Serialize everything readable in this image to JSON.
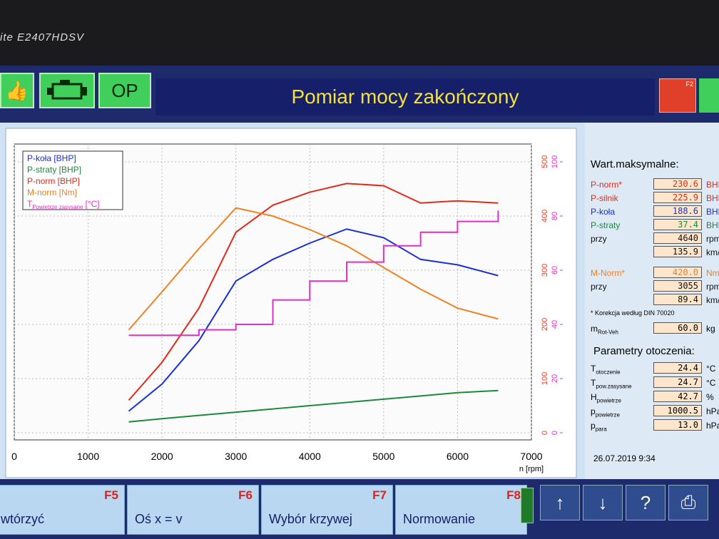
{
  "monitor": {
    "model": "ite E2407HDSV"
  },
  "toolbar": {
    "op_button": "OP",
    "title": "Pomiar mocy zakończony",
    "f2_key": "F2"
  },
  "chart_data": {
    "type": "line",
    "x_label": "n [rpm]",
    "x": [
      1550,
      2000,
      2500,
      3000,
      3500,
      4000,
      4500,
      5000,
      5500,
      6000,
      6550
    ],
    "xlim": [
      0,
      7000
    ],
    "xticks": [
      0,
      1000,
      2000,
      3000,
      4000,
      5000,
      6000,
      7000
    ],
    "ylim": [
      0,
      500
    ],
    "yticks": [
      0,
      100,
      200,
      300,
      400,
      500
    ],
    "y2lim": [
      0,
      100
    ],
    "y2ticks": [
      0,
      20,
      40,
      60,
      80,
      100
    ],
    "y3lim": [
      0,
      250
    ],
    "grid": true,
    "legend": "upper left",
    "series": [
      {
        "name": "P-koła [BHP]",
        "color": "#1a2fd0",
        "axis": "y3",
        "values": [
          20,
          45,
          85,
          140,
          160,
          175,
          188,
          180,
          160,
          155,
          145
        ]
      },
      {
        "name": "P-straty [BHP]",
        "color": "#1a8a3a",
        "axis": "y3",
        "values": [
          10,
          13,
          16,
          19,
          22,
          25,
          28,
          31,
          34,
          37,
          39
        ]
      },
      {
        "name": "P-norm [BHP]",
        "color": "#e02a1a",
        "axis": "y3",
        "values": [
          30,
          65,
          115,
          185,
          210,
          222,
          230,
          228,
          212,
          214,
          212
        ]
      },
      {
        "name": "M-norm [Nm]",
        "color": "#f08020",
        "axis": "y",
        "values": [
          190,
          260,
          340,
          415,
          400,
          375,
          345,
          305,
          265,
          230,
          210
        ]
      },
      {
        "name": "T",
        "subscript": "Powietrze zasysane",
        "unit": "[°C]",
        "color": "#e030c8",
        "axis": "y2",
        "step": true,
        "values": [
          36,
          36,
          38,
          40,
          49,
          56,
          63,
          69,
          74,
          78,
          82
        ]
      }
    ]
  },
  "summary": {
    "title": "Wart.maksymalne:",
    "rows": [
      {
        "label": "P-norm*",
        "color": "#e02a1a",
        "value": "230.6",
        "unit": "BHP"
      },
      {
        "label": "P-silnik",
        "color": "#e02a1a",
        "value": "225.9",
        "unit": "BHP"
      },
      {
        "label": "P-koła",
        "color": "#1a2fd0",
        "value": "188.6",
        "unit": "BHP"
      },
      {
        "label": "P-straty",
        "color": "#1a8a3a",
        "value": "37.4",
        "unit": "BHP"
      },
      {
        "label": "przy",
        "color": "#111111",
        "value": "4640",
        "unit": "rpm"
      },
      {
        "label": null,
        "color": "#111111",
        "value": "135.9",
        "unit": "km/h"
      },
      {
        "label": "M-Norm*",
        "color": "#f08020",
        "value": "420.0",
        "unit": "Nm"
      },
      {
        "label": "przy",
        "color": "#111111",
        "value": "3055",
        "unit": "rpm"
      },
      {
        "label": null,
        "color": "#111111",
        "value": "89.4",
        "unit": "km/h"
      }
    ],
    "note": "* Korekcja według DIN 70020",
    "mass": {
      "label": "m",
      "sub": "Rot-Veh",
      "value": "60.0",
      "unit": "kg"
    }
  },
  "ambient": {
    "title": "Parametry otoczenia:",
    "rows": [
      {
        "label": "T",
        "sub": "otoczenie",
        "value": "24.4",
        "unit": "°C"
      },
      {
        "label": "T",
        "sub": "pow.zasysane",
        "value": "24.7",
        "unit": "°C"
      },
      {
        "label": "H",
        "sub": "powietrze",
        "value": "42.7",
        "unit": "%"
      },
      {
        "label": "p",
        "sub": "powietrze",
        "value": "1000.5",
        "unit": "hPa"
      },
      {
        "label": "p",
        "sub": "para",
        "value": "13.0",
        "unit": "hPa"
      }
    ]
  },
  "datetime": "26.07.2019 9:34",
  "function_keys": [
    {
      "key": "F5",
      "label": "wtórzyć"
    },
    {
      "key": "F6",
      "label": "Oś x = v"
    },
    {
      "key": "F7",
      "label": "Wybór krzywej"
    },
    {
      "key": "F8",
      "label": "Normowanie"
    }
  ]
}
